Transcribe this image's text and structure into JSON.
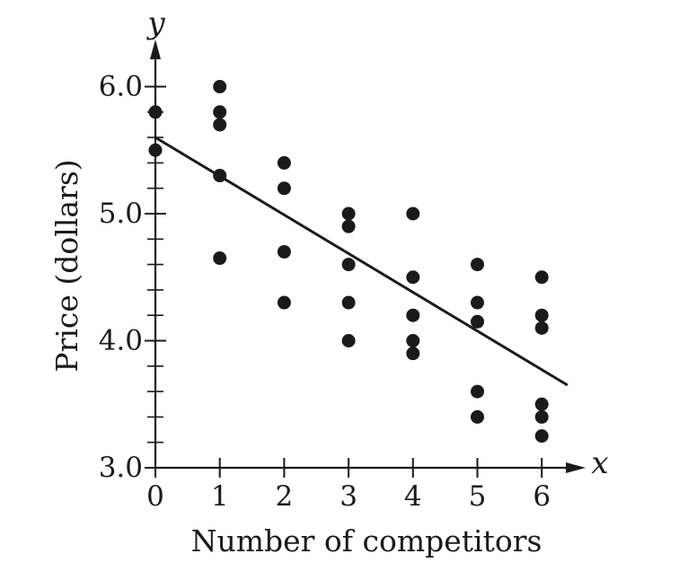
{
  "chart_data": {
    "type": "scatter",
    "title": "",
    "xlabel": "Number of competitors",
    "ylabel": "Price (dollars)",
    "x_axis_letter": "x",
    "y_axis_letter": "y",
    "xlim": [
      0,
      6.5
    ],
    "ylim": [
      3.0,
      6.0
    ],
    "x_ticks": [
      0,
      1,
      2,
      3,
      4,
      5,
      6
    ],
    "x_tick_labels": [
      "0",
      "1",
      "2",
      "3",
      "4",
      "5",
      "6"
    ],
    "y_ticks": [
      3.0,
      4.0,
      5.0,
      6.0
    ],
    "y_tick_labels": [
      "3.0",
      "4.0",
      "5.0",
      "6.0"
    ],
    "y_minor_step": 0.2,
    "grid": false,
    "legend": "none",
    "points": [
      {
        "x": 0,
        "y": 5.8
      },
      {
        "x": 0,
        "y": 5.5
      },
      {
        "x": 1,
        "y": 6.0
      },
      {
        "x": 1,
        "y": 5.8
      },
      {
        "x": 1,
        "y": 5.7
      },
      {
        "x": 1,
        "y": 5.3
      },
      {
        "x": 1,
        "y": 4.65
      },
      {
        "x": 2,
        "y": 5.4
      },
      {
        "x": 2,
        "y": 5.2
      },
      {
        "x": 2,
        "y": 4.7
      },
      {
        "x": 2,
        "y": 4.3
      },
      {
        "x": 3,
        "y": 5.0
      },
      {
        "x": 3,
        "y": 4.9
      },
      {
        "x": 3,
        "y": 4.6
      },
      {
        "x": 3,
        "y": 4.3
      },
      {
        "x": 3,
        "y": 4.0
      },
      {
        "x": 4,
        "y": 5.0
      },
      {
        "x": 4,
        "y": 4.5
      },
      {
        "x": 4,
        "y": 4.2
      },
      {
        "x": 4,
        "y": 4.0
      },
      {
        "x": 4,
        "y": 3.9
      },
      {
        "x": 5,
        "y": 4.6
      },
      {
        "x": 5,
        "y": 4.3
      },
      {
        "x": 5,
        "y": 4.15
      },
      {
        "x": 5,
        "y": 3.6
      },
      {
        "x": 5,
        "y": 3.4
      },
      {
        "x": 6,
        "y": 4.5
      },
      {
        "x": 6,
        "y": 4.2
      },
      {
        "x": 6,
        "y": 4.1
      },
      {
        "x": 6,
        "y": 3.5
      },
      {
        "x": 6,
        "y": 3.4
      },
      {
        "x": 6,
        "y": 3.25
      }
    ],
    "fit_line": {
      "x": [
        0,
        6.4
      ],
      "y": [
        5.6,
        3.65
      ]
    },
    "colors": {
      "marks": "#1a1a1a",
      "background": "#ffffff"
    }
  }
}
